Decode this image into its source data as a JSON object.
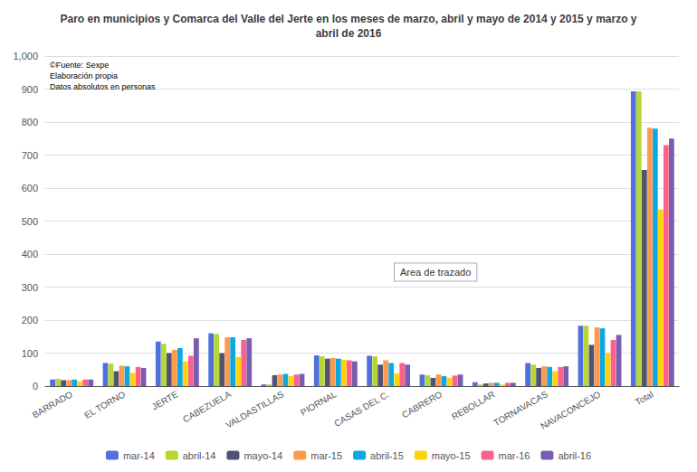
{
  "chart_data": {
    "type": "bar",
    "title": "Paro en municipios y Comarca del Valle del Jerte en los meses de marzo, abril y mayo de 2014 y 2015 y marzo y\nabril de 2016",
    "categories": [
      "BARRADO",
      "EL TORNO",
      "JERTE",
      "CABEZUELA",
      "VALDASTILLAS",
      "PIORNAL",
      "CASAS DEL C.",
      "CABRERO",
      "REBOLLAR",
      "TORNAVACAS",
      "NAVACONCEJO",
      "Total"
    ],
    "series": [
      {
        "name": "mar-14",
        "values": [
          20,
          70,
          135,
          160,
          5,
          93,
          92,
          35,
          12,
          70,
          183,
          893
        ]
      },
      {
        "name": "abril-14",
        "values": [
          22,
          68,
          128,
          158,
          5,
          90,
          90,
          33,
          5,
          65,
          183,
          893
        ]
      },
      {
        "name": "mayo-14",
        "values": [
          18,
          45,
          100,
          100,
          33,
          83,
          65,
          25,
          8,
          55,
          125,
          655
        ]
      },
      {
        "name": "mar-15",
        "values": [
          18,
          62,
          110,
          148,
          35,
          85,
          78,
          35,
          10,
          60,
          178,
          783
        ]
      },
      {
        "name": "abril-15",
        "values": [
          20,
          60,
          115,
          148,
          37,
          83,
          70,
          30,
          10,
          58,
          175,
          780
        ]
      },
      {
        "name": "mayo-15",
        "values": [
          15,
          40,
          75,
          88,
          30,
          80,
          38,
          25,
          5,
          45,
          100,
          535
        ]
      },
      {
        "name": "mar-16",
        "values": [
          20,
          58,
          92,
          140,
          35,
          78,
          70,
          32,
          10,
          58,
          140,
          730
        ]
      },
      {
        "name": "abril-16",
        "values": [
          20,
          55,
          145,
          145,
          37,
          75,
          65,
          35,
          10,
          60,
          155,
          750
        ]
      }
    ],
    "ylim": [
      0,
      1000
    ],
    "yticks": [
      0,
      100,
      200,
      300,
      400,
      500,
      600,
      700,
      800,
      900,
      1000
    ],
    "grid": true,
    "legend": "bottom",
    "annotations": [
      "©Fuente: Sexpe\nElaboración propia\nDatos absolutos en personas",
      "Area de trazado"
    ]
  }
}
